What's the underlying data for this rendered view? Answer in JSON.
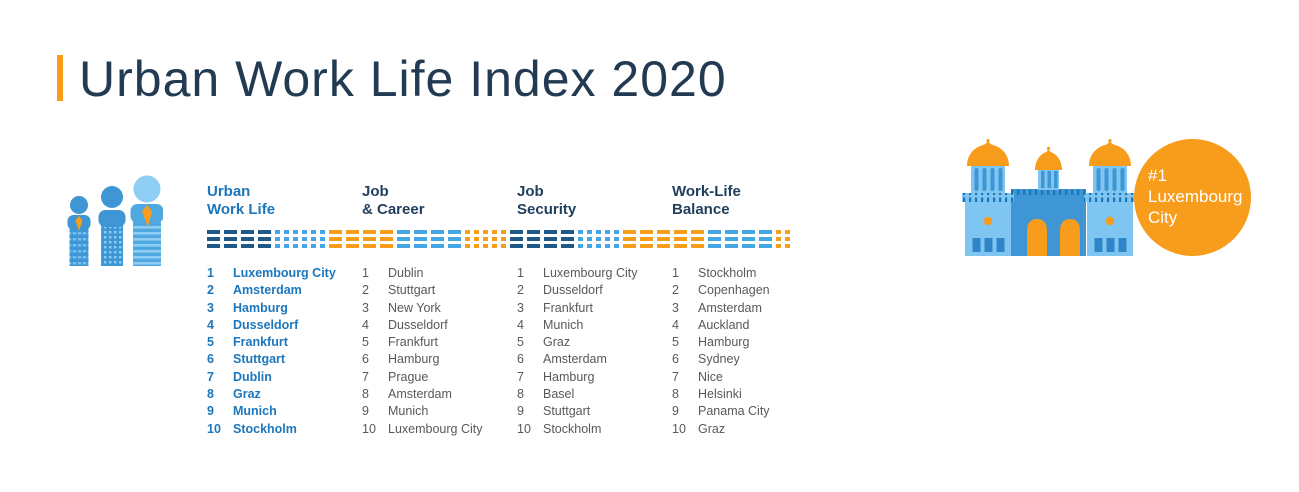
{
  "title": {
    "text": "Urban Work Life Index 2020"
  },
  "icons": {
    "people": "people-growth-icon",
    "building": "luxembourg-cathedral-icon"
  },
  "badge": {
    "lines": [
      "#1",
      "Luxembourg",
      "City"
    ]
  },
  "colors": {
    "orange": "#F89C1C",
    "navy": "#1E5A85",
    "light_blue": "#45A6E5",
    "medium_blue": "#3E96D5",
    "dark_navy": "#223A52",
    "header_navy": "#21405E",
    "highlight_blue": "#1C77BD",
    "list_gray": "#58595B",
    "white": "#FFFFFF"
  },
  "chart_data": {
    "type": "table",
    "title": "Urban Work Life Index 2020",
    "columns": [
      {
        "id": "urban-work-life",
        "header_line1": "Urban",
        "header_line2": "Work Life",
        "highlight": true,
        "items": [
          {
            "rank": "1",
            "city": "Luxembourg City"
          },
          {
            "rank": "2",
            "city": "Amsterdam"
          },
          {
            "rank": "3",
            "city": "Hamburg"
          },
          {
            "rank": "4",
            "city": "Dusseldorf"
          },
          {
            "rank": "5",
            "city": "Frankfurt"
          },
          {
            "rank": "6",
            "city": "Stuttgart"
          },
          {
            "rank": "7",
            "city": "Dublin"
          },
          {
            "rank": "8",
            "city": "Graz"
          },
          {
            "rank": "9",
            "city": "Munich"
          },
          {
            "rank": "10",
            "city": "Stockholm"
          }
        ]
      },
      {
        "id": "job-career",
        "header_line1": "Job",
        "header_line2": "& Career",
        "highlight": false,
        "items": [
          {
            "rank": "1",
            "city": "Dublin"
          },
          {
            "rank": "2",
            "city": "Stuttgart"
          },
          {
            "rank": "3",
            "city": "New York"
          },
          {
            "rank": "4",
            "city": "Dusseldorf"
          },
          {
            "rank": "5",
            "city": "Frankfurt"
          },
          {
            "rank": "6",
            "city": "Hamburg"
          },
          {
            "rank": "7",
            "city": "Prague"
          },
          {
            "rank": "8",
            "city": "Amsterdam"
          },
          {
            "rank": "9",
            "city": "Munich"
          },
          {
            "rank": "10",
            "city": "Luxembourg City"
          }
        ]
      },
      {
        "id": "job-security",
        "header_line1": "Job",
        "header_line2": "Security",
        "highlight": false,
        "items": [
          {
            "rank": "1",
            "city": "Luxembourg City"
          },
          {
            "rank": "2",
            "city": "Dusseldorf"
          },
          {
            "rank": "3",
            "city": "Frankfurt"
          },
          {
            "rank": "4",
            "city": "Munich"
          },
          {
            "rank": "5",
            "city": "Graz"
          },
          {
            "rank": "6",
            "city": "Amsterdam"
          },
          {
            "rank": "7",
            "city": "Hamburg"
          },
          {
            "rank": "8",
            "city": "Basel"
          },
          {
            "rank": "9",
            "city": "Stuttgart"
          },
          {
            "rank": "10",
            "city": "Stockholm"
          }
        ]
      },
      {
        "id": "work-life-balance",
        "header_line1": "Work-Life",
        "header_line2": "Balance",
        "highlight": false,
        "items": [
          {
            "rank": "1",
            "city": "Stockholm"
          },
          {
            "rank": "2",
            "city": "Copenhagen"
          },
          {
            "rank": "3",
            "city": "Amsterdam"
          },
          {
            "rank": "4",
            "city": "Auckland"
          },
          {
            "rank": "5",
            "city": "Hamburg"
          },
          {
            "rank": "6",
            "city": "Sydney"
          },
          {
            "rank": "7",
            "city": "Nice"
          },
          {
            "rank": "8",
            "city": "Helsinki"
          },
          {
            "rank": "9",
            "city": "Panama City"
          },
          {
            "rank": "10",
            "city": "Graz"
          }
        ]
      }
    ]
  },
  "ribbon": {
    "segments": [
      {
        "color": "navy",
        "shape": "dash",
        "count": 4
      },
      {
        "color": "lightblue",
        "shape": "dot",
        "count": 6
      },
      {
        "color": "orange",
        "shape": "dash",
        "count": 4
      },
      {
        "color": "lightblue",
        "shape": "dash",
        "count": 4
      },
      {
        "color": "orange",
        "shape": "dot",
        "count": 5
      },
      {
        "color": "navy",
        "shape": "dash",
        "count": 4
      },
      {
        "color": "lightblue",
        "shape": "dot",
        "count": 5
      },
      {
        "color": "orange",
        "shape": "dash",
        "count": 5
      },
      {
        "color": "lightblue",
        "shape": "dash",
        "count": 4
      },
      {
        "color": "orange",
        "shape": "dot",
        "count": 6
      }
    ]
  }
}
